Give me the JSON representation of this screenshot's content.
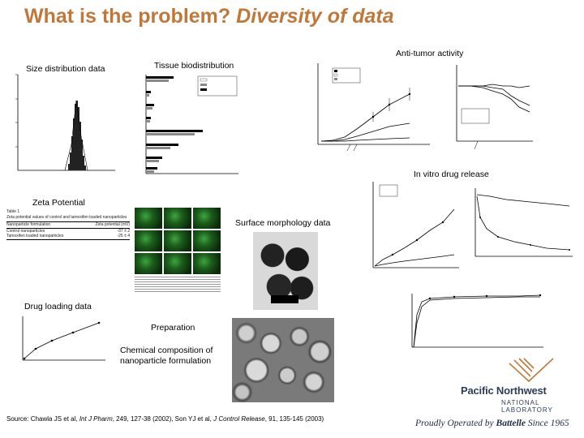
{
  "title": {
    "plain": "What is the problem?",
    "italic": "Diversity of data"
  },
  "labels": {
    "anti_tumor": "Anti-tumor activity",
    "size_distribution": "Size distribution data",
    "tissue_biodistribution": "Tissue biodistribution",
    "in_vitro": "In vitro drug release",
    "zeta": "Zeta Potential",
    "surface": "Surface morphology data",
    "drug_loading": "Drug loading data",
    "preparation": "Preparation",
    "chemical": "Chemical composition of nanoparticle formulation"
  },
  "source": {
    "prefix": "Source: Chawla JS et al, ",
    "journal1": "Int J Pharm",
    "cite1": ", 249, 127-38 (2002), Son YJ et al, ",
    "journal2": "J Control Release",
    "cite2": ", 91, 135-145 (2003)"
  },
  "logo": {
    "name": "Pacific Northwest",
    "sub": "NATIONAL LABORATORY",
    "proudly_prefix": "Proudly Operated by ",
    "proudly_org": "Battelle",
    "proudly_suffix": " Since 1965"
  },
  "brand_color": "#c0783a",
  "zeta_table": {
    "title": "Table 1",
    "desc": "Zeta potential values of control and tamoxifen loaded nanoparticles",
    "col1": "Nanoparticle formulation",
    "col2": "Zeta potential (mV)",
    "rows": [
      {
        "name": "Control nanoparticles",
        "value": "-37 ± 2"
      },
      {
        "name": "Tamoxifen loaded nanoparticles",
        "value": "-25 ± 4"
      }
    ]
  }
}
